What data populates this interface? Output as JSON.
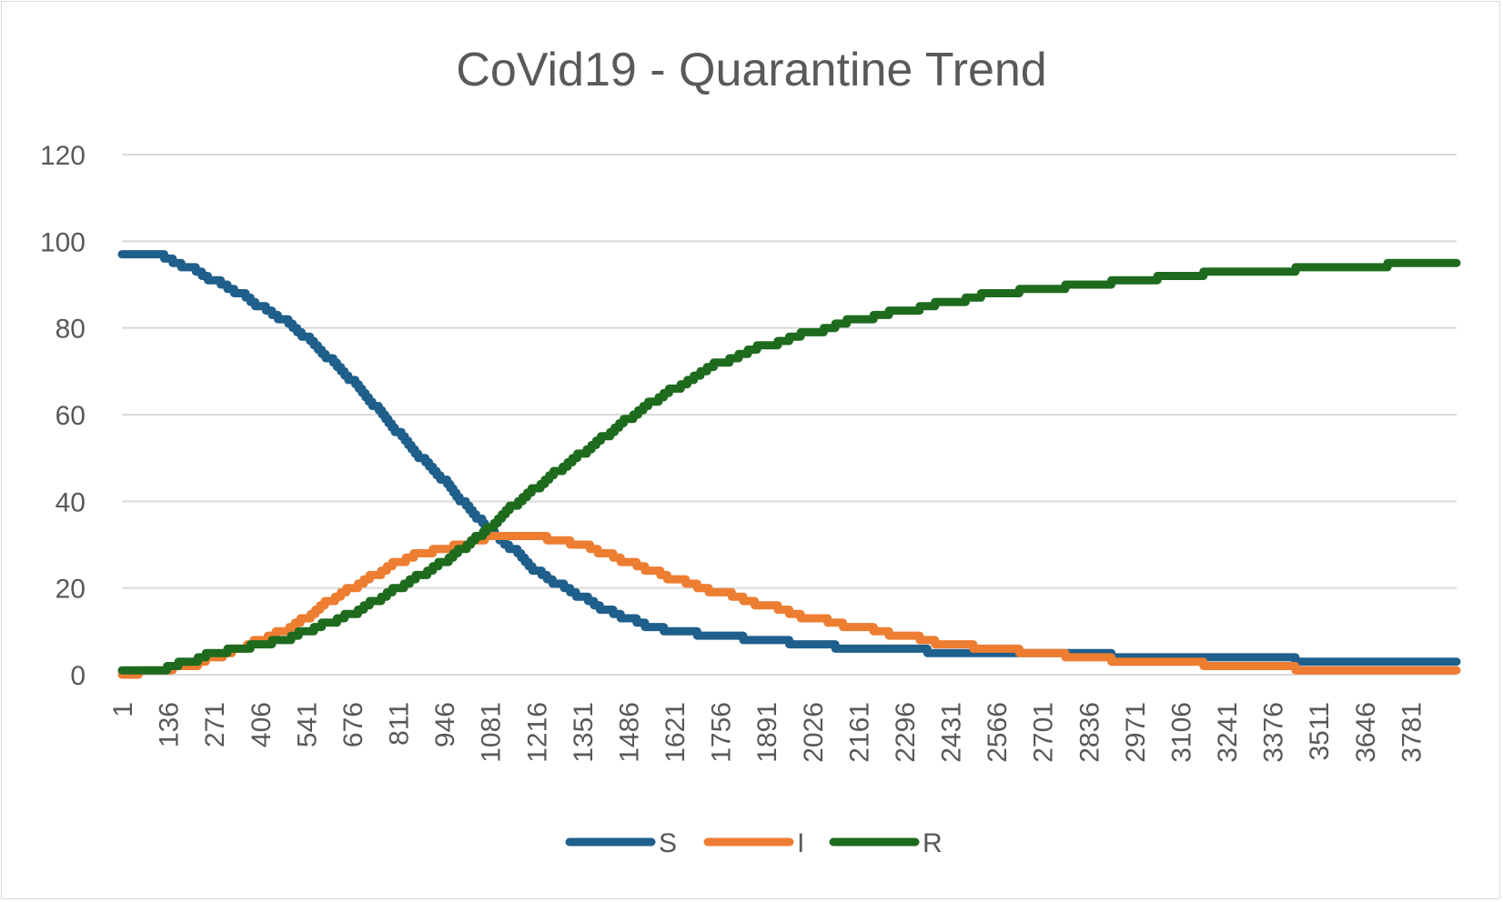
{
  "chart_data": {
    "type": "line",
    "title": "CoVid19 - Quarantine Trend",
    "xlabel": "",
    "ylabel": "",
    "ylim": [
      0,
      120
    ],
    "yticks": [
      0,
      20,
      40,
      60,
      80,
      100,
      120
    ],
    "xlim": [
      1,
      3916
    ],
    "x_tick_labels": [
      "1",
      "136",
      "271",
      "406",
      "541",
      "676",
      "811",
      "946",
      "1081",
      "1216",
      "1351",
      "1486",
      "1621",
      "1756",
      "1891",
      "2026",
      "2161",
      "2296",
      "2431",
      "2566",
      "2701",
      "2836",
      "2971",
      "3106",
      "3241",
      "3376",
      "3511",
      "3646",
      "3781"
    ],
    "grid": true,
    "legend": "bottom",
    "colors": {
      "S": "#1f5f8b",
      "I": "#ed7d31",
      "R": "#1e6b1e"
    },
    "series": [
      {
        "name": "S",
        "color": "#1f5f8b",
        "x": [
          1,
          100,
          200,
          271,
          350,
          406,
          476,
          541,
          610,
          676,
          745,
          811,
          880,
          946,
          1000,
          1050,
          1081,
          1150,
          1216,
          1280,
          1351,
          1420,
          1486,
          1560,
          1621,
          1756,
          1891,
          2026,
          2161,
          2296,
          2431,
          2566,
          2701,
          2836,
          2971,
          3106,
          3241,
          3376,
          3511,
          3646,
          3781,
          3916
        ],
        "y": [
          97,
          97,
          94,
          91,
          88,
          85,
          82,
          78,
          73,
          68,
          62,
          56,
          50,
          45,
          40,
          36,
          33,
          29,
          24,
          21,
          18,
          15,
          13,
          11,
          10,
          9,
          8,
          7,
          6,
          6,
          5,
          5,
          5,
          5,
          4,
          4,
          4,
          4,
          3,
          3,
          3,
          3
        ]
      },
      {
        "name": "I",
        "color": "#ed7d31",
        "x": [
          1,
          100,
          200,
          271,
          350,
          406,
          476,
          541,
          610,
          676,
          745,
          811,
          880,
          946,
          1000,
          1050,
          1081,
          1150,
          1216,
          1280,
          1351,
          1420,
          1486,
          1560,
          1621,
          1756,
          1891,
          2026,
          2161,
          2296,
          2431,
          2566,
          2701,
          2836,
          2971,
          3106,
          3241,
          3376,
          3511,
          3646,
          3781,
          3916
        ],
        "y": [
          0,
          1,
          2,
          4,
          6,
          8,
          10,
          13,
          17,
          20,
          23,
          26,
          28,
          29,
          30,
          31,
          32,
          32,
          32,
          31,
          30,
          28,
          26,
          24,
          22,
          19,
          16,
          13,
          11,
          9,
          7,
          6,
          5,
          4,
          3,
          3,
          2,
          2,
          1,
          1,
          1,
          1
        ]
      },
      {
        "name": "R",
        "color": "#1e6b1e",
        "x": [
          1,
          100,
          200,
          271,
          350,
          406,
          476,
          541,
          610,
          676,
          745,
          811,
          880,
          946,
          1000,
          1050,
          1081,
          1150,
          1216,
          1280,
          1351,
          1420,
          1486,
          1560,
          1621,
          1756,
          1891,
          2026,
          2161,
          2296,
          2431,
          2566,
          2701,
          2836,
          2971,
          3106,
          3241,
          3376,
          3511,
          3646,
          3781,
          3916
        ],
        "y": [
          1,
          1,
          3,
          5,
          6,
          7,
          8,
          10,
          12,
          14,
          17,
          20,
          23,
          26,
          29,
          32,
          34,
          39,
          43,
          47,
          51,
          55,
          59,
          63,
          66,
          72,
          76,
          79,
          82,
          84,
          86,
          88,
          89,
          90,
          91,
          92,
          93,
          93,
          94,
          94,
          95,
          95
        ]
      }
    ]
  }
}
